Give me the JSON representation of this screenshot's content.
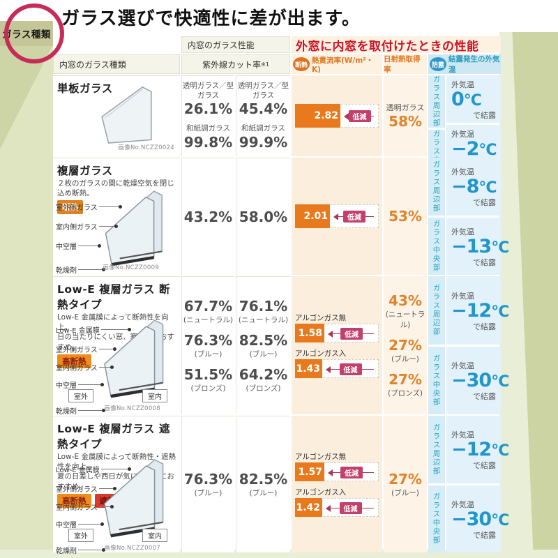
{
  "page": {
    "tab_label": "ガラス種類",
    "title": "ガラス選びで快適性に差が出ます。"
  },
  "header": {
    "col_type": "内窓のガラス種類",
    "group_inner": "内窓のガラス性能",
    "col_uv": "紫外線カット率",
    "uv_note": "※1",
    "group_outer": "外窓に内窓を取付けたときの性能",
    "badge_insulation": "断熱",
    "col_heat": "熱貫流率(W/m²・K)",
    "col_solar": "日射熱取得率",
    "badge_condensation": "防露",
    "col_cond": "結露発生の外気温"
  },
  "labels": {
    "reduce": "低減",
    "outside_temp": "外気温",
    "condense_suffix": "で結露",
    "temp_unit": "°C",
    "glass_edge": "ガラス周辺部",
    "glass_center": "ガラス中央部",
    "outdoor": "室外",
    "indoor": "室内"
  },
  "colors": {
    "accent_orange": "#e8791d",
    "title_red": "#cf1126",
    "reduce_pink": "#c2406a",
    "temp_blue": "#2196cc",
    "teal": "#27a5bf",
    "cream": "#fbeedd",
    "light_blue": "#e3f2fa",
    "page_green": "#dfe5c1",
    "tab_olive": "#c4c697",
    "ring_crimson": "#c72b57"
  },
  "rows": [
    {
      "name": "単板ガラス",
      "image_no": "画像No.NCZZ0024",
      "uv_a": [
        {
          "label": "透明ガラス／型ガラス",
          "value": "26.1%"
        },
        {
          "label": "和紙調ガラス",
          "value": "99.8%"
        }
      ],
      "uv_b": [
        {
          "label": "透明ガラス／型ガラス",
          "value": "45.4%"
        },
        {
          "label": "和紙調ガラス",
          "value": "99.9%"
        }
      ],
      "heat": {
        "bars": [
          {
            "label": "",
            "value": "2.82"
          }
        ]
      },
      "solar": [
        {
          "label": "透明ガラス",
          "value": "58%",
          "note": ""
        }
      ],
      "cond": {
        "edge_temp": "0",
        "center_temp": "−2"
      }
    },
    {
      "name": "複層ガラス",
      "desc1": "２枚のガラスの間に乾燥空気を閉じ込め断熱。",
      "desc2": "",
      "badge1": "断熱",
      "parts": [
        "室外側ガラス",
        "室内側ガラス",
        "中空層",
        "乾燥剤"
      ],
      "image_no": "画像No.NCZZ0009",
      "uv_a": [
        {
          "label": "",
          "value": "43.2%"
        }
      ],
      "uv_b": [
        {
          "label": "",
          "value": "58.0%"
        }
      ],
      "heat": {
        "bars": [
          {
            "label": "",
            "value": "2.01"
          }
        ]
      },
      "solar": [
        {
          "label": "",
          "value": "53%",
          "note": ""
        }
      ],
      "cond": {
        "edge_temp": "−8",
        "center_temp": "−13"
      }
    },
    {
      "name": "Low-E 複層ガラス 断熱タイプ",
      "desc1": "Low-E 金属膜によって断熱性を向上。",
      "desc2": "日の当たりにくい窓、寒冷地におすすめ。",
      "badge1": "高断熱",
      "parts": [
        "Low-E 金属膜",
        "室外側ガラス",
        "室内側ガラス",
        "中空層",
        "乾燥剤"
      ],
      "image_no": "画像No.NCZZ0008",
      "uv_a": [
        {
          "value": "67.7%",
          "note": "(ニュートラル)"
        },
        {
          "value": "76.3%",
          "note": "(ブルー)"
        },
        {
          "value": "51.5%",
          "note": "(ブロンズ)"
        }
      ],
      "uv_b": [
        {
          "value": "76.1%",
          "note": "(ニュートラル)"
        },
        {
          "value": "82.5%",
          "note": "(ブルー)"
        },
        {
          "value": "64.2%",
          "note": "(ブロンズ)"
        }
      ],
      "heat": {
        "bars": [
          {
            "label": "アルゴンガス無",
            "value": "1.58"
          },
          {
            "label": "アルゴンガス入",
            "value": "1.43"
          }
        ]
      },
      "solar": [
        {
          "value": "43%",
          "note": "(ニュートラル)"
        },
        {
          "value": "27%",
          "note": "(ブルー)"
        },
        {
          "value": "27%",
          "note": "(ブロンズ)"
        }
      ],
      "cond": {
        "edge_temp": "−12",
        "center_temp": "−30"
      }
    },
    {
      "name": "Low-E 複層ガラス 遮熱タイプ",
      "desc1": "Low-E 金属膜によって断熱性・遮熱性を向上。",
      "desc2": "夏の日差しや西日が気になる窓におすすめ。",
      "badge1": "高断熱",
      "badge2": "遮熱",
      "parts": [
        "Low-E 金属膜",
        "室外側ガラス",
        "室内側ガラス",
        "中空層",
        "乾燥剤"
      ],
      "image_no": "画像No.NCZZ0007",
      "uv_a": [
        {
          "value": "76.3%",
          "note": "(ブルー)"
        }
      ],
      "uv_b": [
        {
          "value": "82.5%",
          "note": "(ブルー)"
        }
      ],
      "heat": {
        "bars": [
          {
            "label": "アルゴンガス無",
            "value": "1.57"
          },
          {
            "label": "アルゴンガス入",
            "value": "1.42"
          }
        ]
      },
      "solar": [
        {
          "value": "27%",
          "note": "(ブルー)"
        }
      ],
      "cond": {
        "edge_temp": "−12",
        "center_temp": "−30"
      }
    }
  ]
}
